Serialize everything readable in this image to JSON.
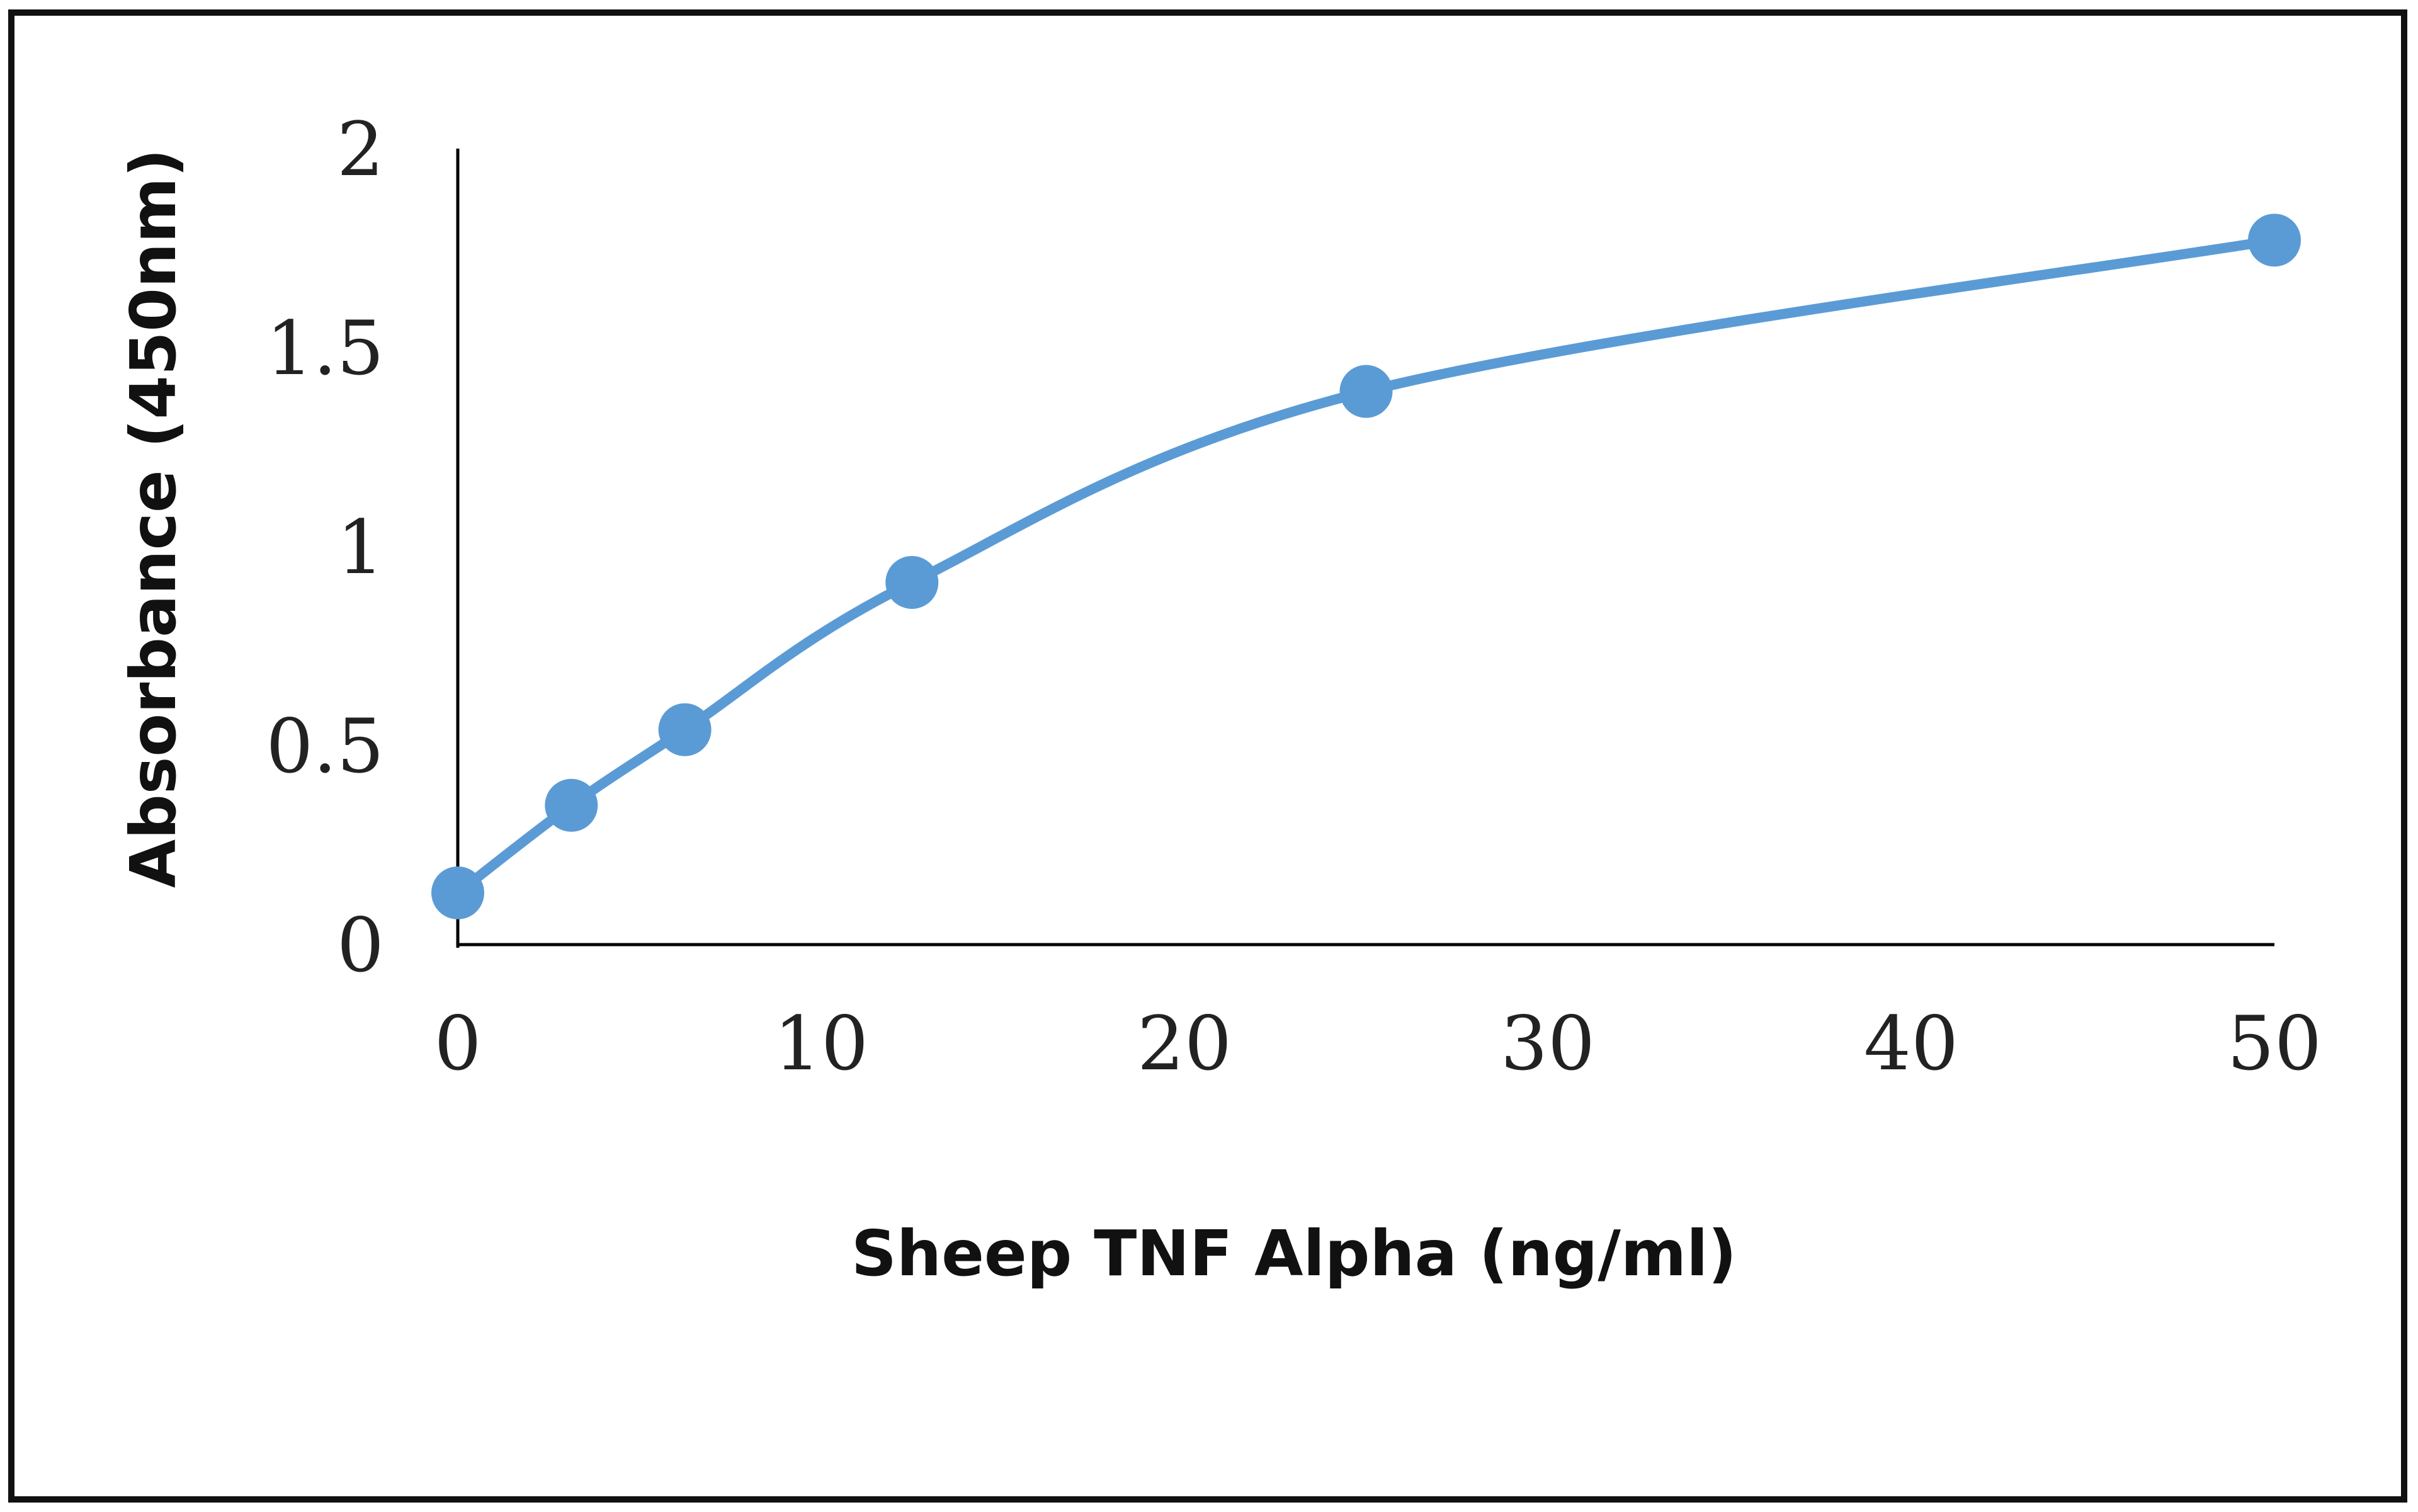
{
  "chart_data": {
    "type": "line",
    "title": "",
    "xlabel": "Sheep TNF Alpha (ng/ml)",
    "ylabel": "Absorbance (450nm)",
    "xlim": [
      0,
      50
    ],
    "ylim": [
      0,
      2
    ],
    "x_ticks": [
      "0",
      "10",
      "20",
      "30",
      "40",
      "50"
    ],
    "y_ticks": [
      "0",
      "0.5",
      "1",
      "1.5",
      "2"
    ],
    "x": [
      0,
      3.125,
      6.25,
      12.5,
      25,
      50
    ],
    "series": [
      {
        "values": [
          0.13,
          0.35,
          0.54,
          0.91,
          1.39,
          1.77
        ],
        "color": "#5b9bd5",
        "smooth": true,
        "markers": "circle"
      }
    ],
    "grid": false,
    "legend": "none"
  }
}
